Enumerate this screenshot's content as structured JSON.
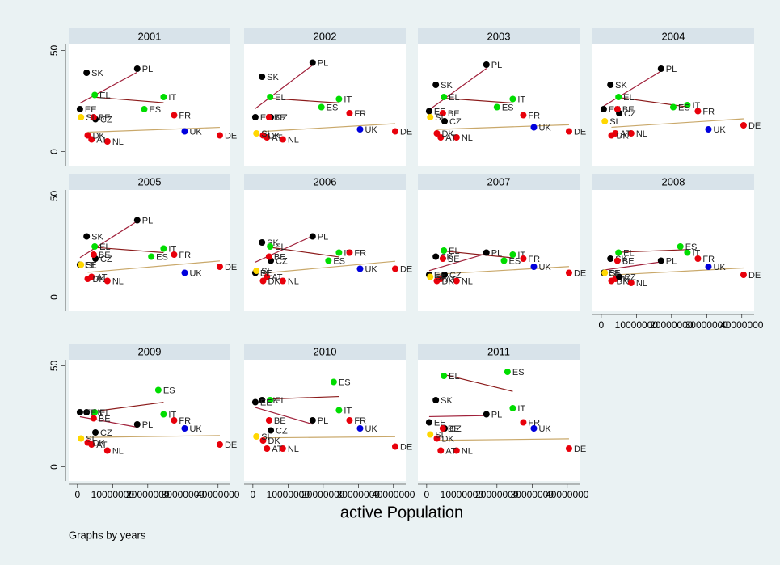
{
  "chart_data": {
    "type": "scatter",
    "xlabel": "active Population",
    "note": "Graphs by years",
    "xlim": [
      -2500000,
      43500000
    ],
    "xticks": [
      0,
      10000000,
      20000000,
      30000000,
      40000000
    ],
    "ylim": [
      -7,
      53
    ],
    "yticks": [
      0,
      50
    ],
    "fit_colors": {
      "#000000": "#a0203a",
      "#00dd00": "#8b1a1a",
      "#e8000b": "#c9a86a",
      "#0000dd": "#6a8caf"
    },
    "panels": [
      {
        "title": "2001",
        "labels": [
          "PL",
          "SK",
          "EL",
          "IT",
          "ES",
          "FR",
          "DE",
          "UK",
          "NL",
          "AT",
          "DK",
          "CZ",
          "EE",
          "BE",
          "SI"
        ],
        "x": [
          17000000,
          2600000,
          4900000,
          24500000,
          19000000,
          27500000,
          40500000,
          30500000,
          8500000,
          4000000,
          2900000,
          5100000,
          700000,
          4600000,
          1000000
        ],
        "y": [
          41,
          39,
          28,
          27,
          21,
          18,
          8,
          10,
          5,
          6,
          8,
          16,
          21,
          17,
          17
        ],
        "colors": [
          "#000000",
          "#000000",
          "#00dd00",
          "#00dd00",
          "#00dd00",
          "#e8000b",
          "#e8000b",
          "#0000dd",
          "#e8000b",
          "#e8000b",
          "#e8000b",
          "#000000",
          "#000000",
          "#e8000b",
          "#ffd700"
        ]
      },
      {
        "title": "2002",
        "labels": [
          "PL",
          "SK",
          "EL",
          "IT",
          "ES",
          "FR",
          "DE",
          "UK",
          "NL",
          "AT",
          "DK",
          "CZ",
          "EE",
          "BE",
          "SI"
        ],
        "x": [
          17000000,
          2600000,
          4900000,
          24500000,
          19500000,
          27500000,
          40500000,
          30500000,
          8500000,
          4000000,
          2900000,
          5100000,
          700000,
          4600000,
          1000000
        ],
        "y": [
          44,
          37,
          27,
          26,
          22,
          19,
          10,
          11,
          6,
          7,
          8,
          17,
          17,
          17,
          9
        ],
        "colors": [
          "#000000",
          "#000000",
          "#00dd00",
          "#00dd00",
          "#00dd00",
          "#e8000b",
          "#e8000b",
          "#0000dd",
          "#e8000b",
          "#e8000b",
          "#e8000b",
          "#000000",
          "#000000",
          "#e8000b",
          "#ffd700"
        ]
      },
      {
        "title": "2003",
        "labels": [
          "PL",
          "SK",
          "EL",
          "IT",
          "ES",
          "FR",
          "DE",
          "UK",
          "NL",
          "AT",
          "DK",
          "CZ",
          "EE",
          "BE",
          "SI"
        ],
        "x": [
          17000000,
          2600000,
          4900000,
          24500000,
          20000000,
          27500000,
          40500000,
          30500000,
          8500000,
          4000000,
          2900000,
          5100000,
          700000,
          4600000,
          1000000
        ],
        "y": [
          43,
          33,
          27,
          26,
          22,
          18,
          10,
          12,
          7,
          7,
          9,
          15,
          20,
          19,
          17
        ],
        "colors": [
          "#000000",
          "#000000",
          "#00dd00",
          "#00dd00",
          "#00dd00",
          "#e8000b",
          "#e8000b",
          "#0000dd",
          "#e8000b",
          "#e8000b",
          "#e8000b",
          "#000000",
          "#000000",
          "#e8000b",
          "#ffd700"
        ]
      },
      {
        "title": "2004",
        "labels": [
          "PL",
          "SK",
          "EL",
          "IT",
          "ES",
          "FR",
          "DE",
          "UK",
          "NL",
          "AT",
          "DK",
          "CZ",
          "EE",
          "BE",
          "SI"
        ],
        "x": [
          17000000,
          2600000,
          4900000,
          24500000,
          20500000,
          27500000,
          40500000,
          30500000,
          8500000,
          4000000,
          2900000,
          5100000,
          700000,
          4600000,
          1000000
        ],
        "y": [
          41,
          33,
          27,
          23,
          22,
          20,
          13,
          11,
          9,
          9,
          8,
          19,
          21,
          21,
          15
        ],
        "colors": [
          "#000000",
          "#000000",
          "#00dd00",
          "#00dd00",
          "#00dd00",
          "#e8000b",
          "#e8000b",
          "#0000dd",
          "#e8000b",
          "#e8000b",
          "#e8000b",
          "#000000",
          "#000000",
          "#e8000b",
          "#ffd700"
        ]
      },
      {
        "title": "2005",
        "labels": [
          "PL",
          "SK",
          "EL",
          "IT",
          "ES",
          "FR",
          "DE",
          "UK",
          "NL",
          "AT",
          "DK",
          "CZ",
          "EE",
          "BE",
          "SI"
        ],
        "x": [
          17000000,
          2600000,
          4900000,
          24500000,
          21000000,
          27500000,
          40500000,
          30500000,
          8500000,
          4000000,
          2900000,
          5100000,
          700000,
          4600000,
          1000000
        ],
        "y": [
          38,
          30,
          25,
          24,
          20,
          21,
          15,
          12,
          8,
          10,
          9,
          19,
          16,
          21,
          16
        ],
        "colors": [
          "#000000",
          "#000000",
          "#00dd00",
          "#00dd00",
          "#00dd00",
          "#e8000b",
          "#e8000b",
          "#0000dd",
          "#e8000b",
          "#e8000b",
          "#e8000b",
          "#000000",
          "#000000",
          "#e8000b",
          "#ffd700"
        ]
      },
      {
        "title": "2006",
        "labels": [
          "PL",
          "SK",
          "EL",
          "IT",
          "ES",
          "FR",
          "DE",
          "UK",
          "NL",
          "AT",
          "DK",
          "CZ",
          "EE",
          "BE",
          "SI"
        ],
        "x": [
          17000000,
          2600000,
          4900000,
          24500000,
          21500000,
          27500000,
          40500000,
          30500000,
          8500000,
          4000000,
          2900000,
          5100000,
          700000,
          4600000,
          1000000
        ],
        "y": [
          30,
          27,
          25,
          22,
          18,
          22,
          14,
          14,
          8,
          10,
          8,
          18,
          12,
          20,
          13
        ],
        "colors": [
          "#000000",
          "#000000",
          "#00dd00",
          "#00dd00",
          "#00dd00",
          "#e8000b",
          "#e8000b",
          "#0000dd",
          "#e8000b",
          "#e8000b",
          "#e8000b",
          "#000000",
          "#000000",
          "#e8000b",
          "#ffd700"
        ]
      },
      {
        "title": "2007",
        "labels": [
          "PL",
          "SK",
          "EL",
          "IT",
          "ES",
          "FR",
          "DE",
          "UK",
          "NL",
          "AT",
          "DK",
          "CZ",
          "EE",
          "BE",
          "SI"
        ],
        "x": [
          17000000,
          2600000,
          4900000,
          24500000,
          22000000,
          27500000,
          40500000,
          30500000,
          8500000,
          4000000,
          2900000,
          5100000,
          700000,
          4600000,
          1000000
        ],
        "y": [
          22,
          20,
          23,
          21,
          18,
          19,
          12,
          15,
          8,
          9,
          8,
          11,
          11,
          19,
          10
        ],
        "colors": [
          "#000000",
          "#000000",
          "#00dd00",
          "#00dd00",
          "#00dd00",
          "#e8000b",
          "#e8000b",
          "#0000dd",
          "#e8000b",
          "#e8000b",
          "#e8000b",
          "#000000",
          "#000000",
          "#e8000b",
          "#ffd700"
        ]
      },
      {
        "title": "2008",
        "labels": [
          "PL",
          "SK",
          "EL",
          "IT",
          "ES",
          "FR",
          "DE",
          "UK",
          "NL",
          "AT",
          "DK",
          "CZ",
          "EE",
          "BE",
          "SI"
        ],
        "x": [
          17000000,
          2600000,
          4900000,
          24500000,
          22500000,
          27500000,
          40500000,
          30500000,
          8500000,
          4000000,
          2900000,
          5100000,
          700000,
          4600000,
          1000000
        ],
        "y": [
          18,
          19,
          22,
          22,
          25,
          19,
          11,
          15,
          7,
          9,
          8,
          10,
          12,
          18,
          12
        ],
        "colors": [
          "#000000",
          "#000000",
          "#00dd00",
          "#00dd00",
          "#00dd00",
          "#e8000b",
          "#e8000b",
          "#0000dd",
          "#e8000b",
          "#e8000b",
          "#e8000b",
          "#000000",
          "#000000",
          "#e8000b",
          "#ffd700"
        ]
      },
      {
        "title": "2009",
        "labels": [
          "PL",
          "SK",
          "EL",
          "IT",
          "ES",
          "FR",
          "DE",
          "UK",
          "NL",
          "AT",
          "DK",
          "CZ",
          "EE",
          "BE",
          "SI"
        ],
        "x": [
          17000000,
          2600000,
          4900000,
          24500000,
          23000000,
          27500000,
          40500000,
          30500000,
          8500000,
          4000000,
          2900000,
          5100000,
          700000,
          4600000,
          1000000
        ],
        "y": [
          21,
          27,
          27,
          26,
          38,
          23,
          11,
          19,
          8,
          11,
          12,
          17,
          27,
          24,
          14
        ],
        "colors": [
          "#000000",
          "#000000",
          "#00dd00",
          "#00dd00",
          "#00dd00",
          "#e8000b",
          "#e8000b",
          "#0000dd",
          "#e8000b",
          "#e8000b",
          "#e8000b",
          "#000000",
          "#000000",
          "#e8000b",
          "#ffd700"
        ]
      },
      {
        "title": "2010",
        "labels": [
          "PL",
          "SK",
          "EL",
          "IT",
          "ES",
          "FR",
          "DE",
          "UK",
          "NL",
          "AT",
          "DK",
          "CZ",
          "EE",
          "BE",
          "SI"
        ],
        "x": [
          17000000,
          2600000,
          4900000,
          24500000,
          23000000,
          27500000,
          40500000,
          30500000,
          8500000,
          4000000,
          2900000,
          5100000,
          700000,
          4600000,
          1000000
        ],
        "y": [
          23,
          33,
          33,
          28,
          42,
          23,
          10,
          19,
          9,
          9,
          13,
          18,
          32,
          23,
          15
        ],
        "colors": [
          "#000000",
          "#000000",
          "#00dd00",
          "#00dd00",
          "#00dd00",
          "#e8000b",
          "#e8000b",
          "#0000dd",
          "#e8000b",
          "#e8000b",
          "#e8000b",
          "#000000",
          "#000000",
          "#e8000b",
          "#ffd700"
        ]
      },
      {
        "title": "2011",
        "labels": [
          "PL",
          "SK",
          "EL",
          "IT",
          "ES",
          "FR",
          "DE",
          "UK",
          "NL",
          "AT",
          "DK",
          "CZ",
          "EE",
          "BE",
          "SI"
        ],
        "x": [
          17000000,
          2600000,
          4900000,
          24500000,
          23000000,
          27500000,
          40500000,
          30500000,
          8500000,
          4000000,
          2900000,
          5100000,
          700000,
          4600000,
          1000000
        ],
        "y": [
          26,
          33,
          45,
          29,
          47,
          22,
          9,
          19,
          8,
          8,
          14,
          19,
          22,
          19,
          16
        ],
        "colors": [
          "#000000",
          "#000000",
          "#00dd00",
          "#00dd00",
          "#00dd00",
          "#e8000b",
          "#e8000b",
          "#0000dd",
          "#e8000b",
          "#e8000b",
          "#e8000b",
          "#000000",
          "#000000",
          "#e8000b",
          "#ffd700"
        ]
      }
    ]
  }
}
